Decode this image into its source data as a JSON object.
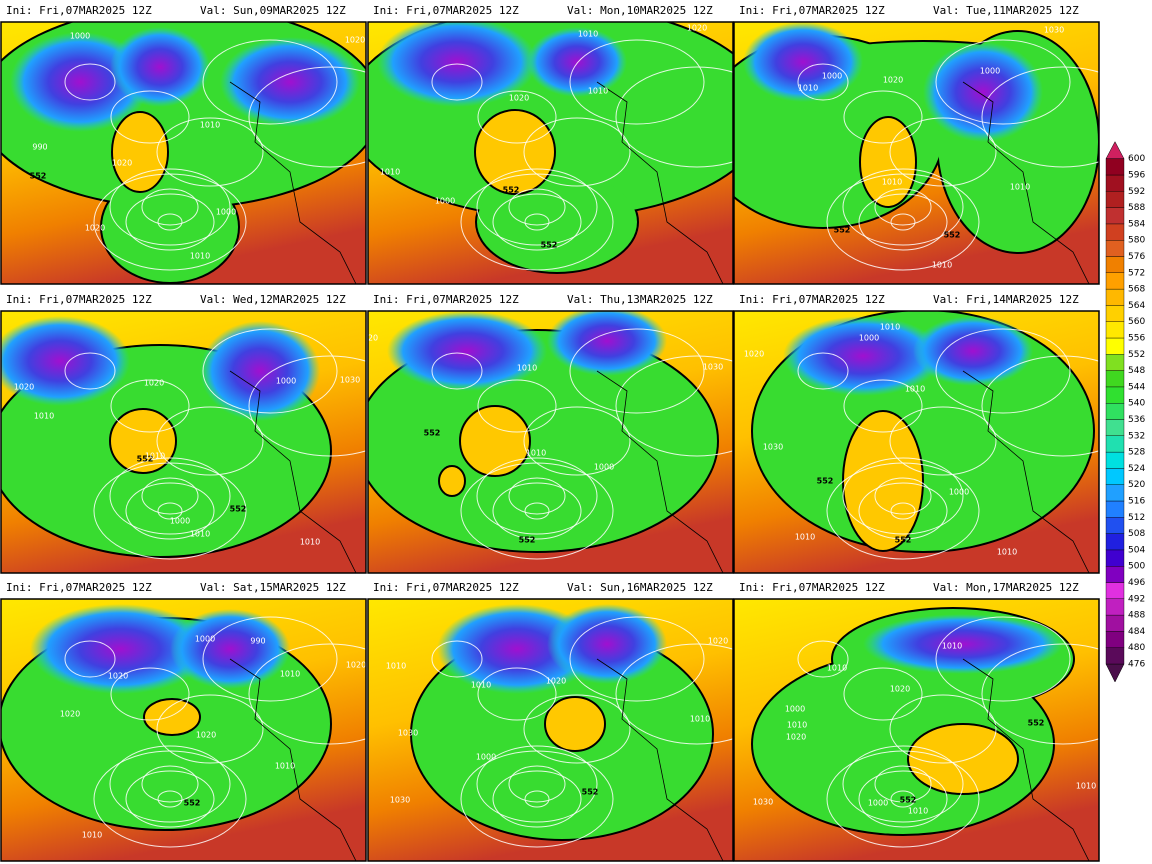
{
  "panels": [
    {
      "ini": "Ini: Fri,07MAR2025 12Z",
      "valid": "Val: Sun,09MAR2025 12Z",
      "contour_labels": [
        "1000",
        "990",
        "552",
        "1020",
        "1010",
        "1020",
        "1000",
        "1010",
        "1020"
      ]
    },
    {
      "ini": "Ini: Fri,07MAR2025 12Z",
      "valid": "Val: Mon,10MAR2025 12Z",
      "contour_labels": [
        "1010",
        "1020",
        "1010",
        "1000",
        "552",
        "552",
        "1010",
        "1020"
      ]
    },
    {
      "ini": "Ini: Fri,07MAR2025 12Z",
      "valid": "Val: Tue,11MAR2025 12Z",
      "contour_labels": [
        "1000",
        "1010",
        "1020",
        "1000",
        "1010",
        "552",
        "552",
        "1010",
        "1030",
        "1010"
      ]
    },
    {
      "ini": "Ini: Fri,07MAR2025 12Z",
      "valid": "Val: Wed,12MAR2025 12Z",
      "contour_labels": [
        "1020",
        "1010",
        "1020",
        "1000",
        "552",
        "1010",
        "1000",
        "552",
        "1010",
        "1010",
        "1030"
      ]
    },
    {
      "ini": "Ini: Fri,07MAR2025 12Z",
      "valid": "Val: Thu,13MAR2025 12Z",
      "contour_labels": [
        "552",
        "1010",
        "1010",
        "1000",
        "552",
        "1030",
        "20"
      ]
    },
    {
      "ini": "Ini: Fri,07MAR2025 12Z",
      "valid": "Val: Fri,14MAR2025 12Z",
      "contour_labels": [
        "1010",
        "1020",
        "1000",
        "1010",
        "1030",
        "552",
        "1000",
        "552",
        "1010",
        "1010"
      ]
    },
    {
      "ini": "Ini: Fri,07MAR2025 12Z",
      "valid": "Val: Sat,15MAR2025 12Z",
      "contour_labels": [
        "1020",
        "1000",
        "990",
        "1010",
        "1020",
        "1020",
        "1010",
        "552",
        "1010",
        "1020"
      ]
    },
    {
      "ini": "Ini: Fri,07MAR2025 12Z",
      "valid": "Val: Sun,16MAR2025 12Z",
      "contour_labels": [
        "1010",
        "1010",
        "1020",
        "1010",
        "1030",
        "1000",
        "552",
        "1030",
        "1020"
      ]
    },
    {
      "ini": "Ini: Fri,07MAR2025 12Z",
      "valid": "Val: Mon,17MAR2025 12Z",
      "contour_labels": [
        "1010",
        "1010",
        "1020",
        "1000",
        "1010",
        "1020",
        "552",
        "1000",
        "552",
        "1010",
        "1030",
        "1010"
      ]
    }
  ],
  "colorbar": {
    "ticks": [
      476,
      480,
      484,
      488,
      492,
      496,
      500,
      504,
      508,
      512,
      516,
      520,
      524,
      528,
      532,
      536,
      540,
      544,
      548,
      552,
      556,
      560,
      564,
      568,
      572,
      576,
      580,
      584,
      588,
      592,
      596,
      600
    ],
    "colors": [
      "#4b0f4b",
      "#5a0a5a",
      "#800080",
      "#a010a0",
      "#c020c0",
      "#e030e0",
      "#8000c0",
      "#4000d0",
      "#2020e0",
      "#2050f0",
      "#2080ff",
      "#20a0ff",
      "#00c8ff",
      "#00e0e0",
      "#20e0b0",
      "#40e090",
      "#30e060",
      "#30e030",
      "#40d820",
      "#80e020",
      "#ffff00",
      "#ffe800",
      "#ffd000",
      "#ffb800",
      "#ffa000",
      "#f08000",
      "#e06020",
      "#d04020",
      "#c03030",
      "#b02020",
      "#a01020",
      "#900020",
      "#d02060"
    ]
  }
}
